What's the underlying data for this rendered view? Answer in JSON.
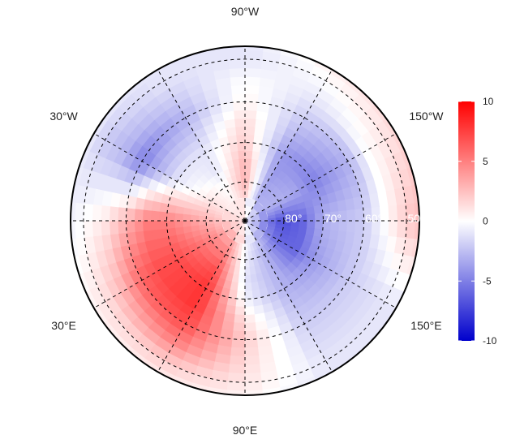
{
  "chart_data": {
    "type": "heatmap",
    "projection": "north-polar-stereographic",
    "lon_labels": [
      {
        "lon": -90,
        "text": "90°W"
      },
      {
        "lon": -30,
        "text": "30°W"
      },
      {
        "lon": -150,
        "text": "150°W"
      },
      {
        "lon": 30,
        "text": "30°E"
      },
      {
        "lon": 150,
        "text": "150°E"
      },
      {
        "lon": 90,
        "text": "90°E"
      }
    ],
    "lat_labels": [
      {
        "lat": 80,
        "text": "80°"
      },
      {
        "lat": 70,
        "text": "70°"
      },
      {
        "lat": 60,
        "text": "60°"
      },
      {
        "lat": 50,
        "text": "50°"
      }
    ],
    "lat_min": 47,
    "meridians_every_deg": 30,
    "parallels": [
      80,
      70,
      60,
      50
    ],
    "grid_lats": [
      88,
      85,
      80,
      75,
      70,
      65,
      60,
      55,
      50,
      47
    ],
    "grid_lons": [
      0,
      30,
      60,
      90,
      120,
      150,
      180,
      210,
      240,
      270,
      300,
      330
    ],
    "values": [
      [
        1.5,
        1.5,
        1,
        0.5,
        -1,
        -2,
        -2,
        -1.5,
        -1,
        1,
        1,
        1
      ],
      [
        2,
        3,
        3,
        0,
        -2,
        -4,
        -5,
        -3,
        -3,
        1.5,
        0.5,
        1
      ],
      [
        3,
        5,
        5,
        -0.5,
        -3,
        -6,
        -7,
        -3,
        -3.5,
        3,
        0,
        1
      ],
      [
        4,
        6,
        7,
        -1,
        -3,
        -6,
        -6,
        -3.5,
        -4,
        3,
        -1,
        0
      ],
      [
        5,
        7,
        8,
        -0.5,
        -3,
        -4,
        -3,
        -5,
        -4,
        2,
        -1,
        -1
      ],
      [
        5,
        7,
        8,
        1,
        -2.5,
        -3,
        -2.5,
        -4,
        -3,
        1.5,
        -2,
        -3
      ],
      [
        3,
        6,
        7,
        2,
        -2,
        -2,
        -2,
        -3,
        -2,
        0.5,
        -3,
        -5
      ],
      [
        1,
        3,
        5,
        1.5,
        -1.5,
        -1.5,
        0,
        0,
        -1,
        0,
        -2,
        -3
      ],
      [
        0,
        1,
        2,
        1,
        -1,
        -1,
        2,
        1,
        0,
        -1,
        -1,
        -2
      ],
      [
        -0.5,
        0.5,
        1,
        0.5,
        -1,
        -1,
        2.5,
        1.5,
        0.5,
        -1,
        -1,
        -1
      ]
    ],
    "colorbar": {
      "min": -10,
      "max": 10,
      "ticks": [
        "10",
        "5",
        "0",
        "-5",
        "-10"
      ],
      "tick_values": [
        10,
        5,
        0,
        -5,
        -10
      ],
      "colors": {
        "low": "#0000cc",
        "mid": "#ffffff",
        "high": "#ff0000"
      }
    }
  }
}
